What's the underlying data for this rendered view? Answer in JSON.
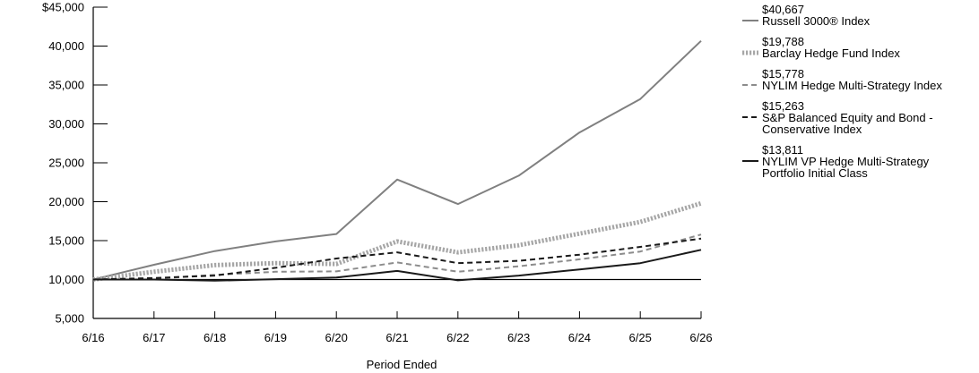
{
  "chart_data": {
    "type": "line",
    "xlabel": "Period Ended",
    "ylabel": "",
    "categories": [
      "6/16",
      "6/17",
      "6/18",
      "6/19",
      "6/20",
      "6/21",
      "6/22",
      "6/23",
      "6/24",
      "6/25",
      "6/26"
    ],
    "ylim": [
      5000,
      45000
    ],
    "y_ticks": [
      {
        "value": 5000,
        "label": "5,000"
      },
      {
        "value": 10000,
        "label": "10,000"
      },
      {
        "value": 15000,
        "label": "15,000"
      },
      {
        "value": 20000,
        "label": "20,000"
      },
      {
        "value": 25000,
        "label": "25,000"
      },
      {
        "value": 30000,
        "label": "30,000"
      },
      {
        "value": 35000,
        "label": "35,000"
      },
      {
        "value": 40000,
        "label": "40,000"
      },
      {
        "value": 45000,
        "label": "$45,000"
      }
    ],
    "reference_line": 10000,
    "legend_position": "right",
    "series": [
      {
        "name": "Russell 3000® Index",
        "end_label": "$40,667",
        "color": "#808080",
        "style": "solid",
        "values": [
          10000,
          11900,
          13650,
          14900,
          15850,
          22850,
          19700,
          23350,
          28900,
          33200,
          40667
        ]
      },
      {
        "name": "Barclay Hedge Fund Index",
        "end_label": "$19,788",
        "color": "#a6a6a6",
        "style": "dotted",
        "values": [
          10000,
          11000,
          11850,
          12100,
          12000,
          14900,
          13500,
          14400,
          15900,
          17400,
          19788
        ]
      },
      {
        "name": "NYLIM Hedge Multi-Strategy Index",
        "end_label": "$15,778",
        "color": "#8c8c8c",
        "style": "dashed",
        "values": [
          10000,
          10100,
          10600,
          11000,
          11050,
          12200,
          11000,
          11700,
          12600,
          13600,
          15778
        ]
      },
      {
        "name": "S&P Balanced Equity and Bond -\nConservative Index",
        "end_label": "$15,263",
        "color": "#1a1a1a",
        "style": "dashed",
        "values": [
          10000,
          10200,
          10500,
          11500,
          12700,
          13500,
          12100,
          12400,
          13200,
          14200,
          15263
        ]
      },
      {
        "name": "NYLIM VP Hedge Multi-Strategy\nPortfolio Initial Class",
        "end_label": "$13,811",
        "color": "#1a1a1a",
        "style": "solid",
        "values": [
          10000,
          10000,
          9850,
          10050,
          10250,
          11100,
          9900,
          10500,
          11300,
          12100,
          13811
        ]
      }
    ]
  }
}
